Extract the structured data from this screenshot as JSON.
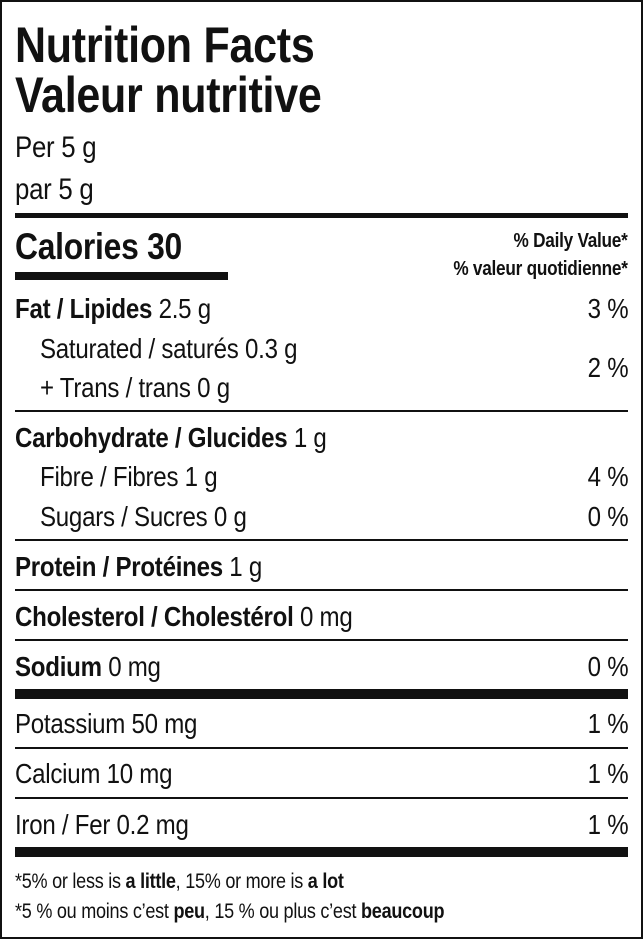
{
  "title_en": "Nutrition Facts",
  "title_fr": "Valeur nutritive",
  "serving_en": "Per 5 g",
  "serving_fr": "par 5 g",
  "calories_label": "Calories",
  "calories_value": "30",
  "dv_header_en": "% Daily Value*",
  "dv_header_fr": "% valeur quotidienne*",
  "nutrients": {
    "fat": {
      "label": "Fat / Lipides",
      "amount": "2.5 g",
      "dv": "3 %"
    },
    "saturated": {
      "label": "Saturated / saturés",
      "amount": "0.3 g"
    },
    "trans": {
      "label": "+ Trans / trans",
      "amount": "0 g"
    },
    "sat_trans_dv": "2 %",
    "carbohydrate": {
      "label": "Carbohydrate / Glucides",
      "amount": "1 g"
    },
    "fibre": {
      "label": "Fibre / Fibres",
      "amount": "1 g",
      "dv": "4 %"
    },
    "sugars": {
      "label": "Sugars / Sucres",
      "amount": "0 g",
      "dv": "0 %"
    },
    "protein": {
      "label": "Protein / Protéines",
      "amount": "1 g"
    },
    "cholesterol": {
      "label": "Cholesterol / Cholestérol",
      "amount": "0 mg"
    },
    "sodium": {
      "label": "Sodium",
      "amount": "0 mg",
      "dv": "0 %"
    },
    "potassium": {
      "label": "Potassium",
      "amount": "50 mg",
      "dv": "1 %"
    },
    "calcium": {
      "label": "Calcium",
      "amount": "10 mg",
      "dv": "1 %"
    },
    "iron": {
      "label": "Iron / Fer",
      "amount": "0.2 mg",
      "dv": "1 %"
    }
  },
  "footnote_en": {
    "a": "*5% or less is ",
    "b": "a little",
    "c": ", 15% or more is ",
    "d": "a lot"
  },
  "footnote_fr": {
    "a": "*5 % ou moins c’est ",
    "b": "peu",
    "c": ", 15 % ou plus c’est ",
    "d": "beaucoup"
  }
}
